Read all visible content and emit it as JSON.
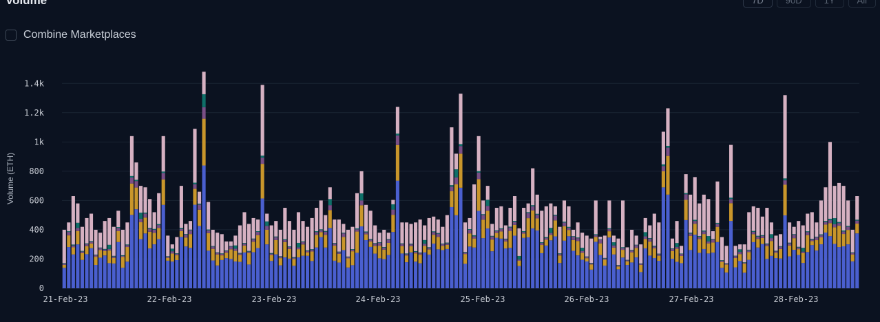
{
  "header": {
    "title": "Volume",
    "ranges": [
      "7D",
      "90D",
      "1Y",
      "All"
    ],
    "active_range": "7D"
  },
  "controls": {
    "combine_label": "Combine Marketplaces",
    "combine_checked": false
  },
  "colors": {
    "background": "#0b1220",
    "grid": "#1b2433",
    "axis_text": "#c8ccd4",
    "segments": [
      "#4a5fcf",
      "#c9962b",
      "#7a4f86",
      "#0f6f68",
      "#d6b1c2"
    ]
  },
  "chart_data": {
    "type": "bar",
    "stacked": true,
    "ylabel": "Volume (ETH)",
    "ylim": [
      0,
      1500
    ],
    "yticks": [
      0,
      200,
      400,
      600,
      800,
      "1k",
      "1.2k",
      "1.4k"
    ],
    "ytick_values": [
      0,
      200,
      400,
      600,
      800,
      1000,
      1200,
      1400
    ],
    "grid": true,
    "xticks": [
      "21-Feb-23",
      "22-Feb-23",
      "23-Feb-23",
      "24-Feb-23",
      "25-Feb-23",
      "26-Feb-23",
      "27-Feb-23",
      "28-Feb-23"
    ],
    "bar_totals": [
      400,
      450,
      630,
      580,
      420,
      480,
      510,
      400,
      380,
      460,
      480,
      420,
      530,
      400,
      450,
      1040,
      860,
      700,
      690,
      610,
      520,
      650,
      1040,
      360,
      300,
      350,
      700,
      440,
      460,
      1090,
      660,
      1480,
      590,
      400,
      380,
      370,
      320,
      320,
      360,
      430,
      520,
      440,
      480,
      470,
      1390,
      510,
      430,
      460,
      400,
      550,
      460,
      400,
      520,
      460,
      420,
      480,
      550,
      600,
      500,
      690,
      470,
      470,
      440,
      400,
      420,
      650,
      800,
      570,
      530,
      430,
      380,
      400,
      380,
      600,
      1240,
      450,
      450,
      440,
      450,
      470,
      430,
      480,
      490,
      470,
      420,
      500,
      1100,
      920,
      1330,
      450,
      480,
      710,
      1040,
      600,
      700,
      440,
      550,
      560,
      430,
      550,
      630,
      410,
      550,
      580,
      820,
      640,
      530,
      560,
      580,
      560,
      420,
      600,
      560,
      400,
      450,
      380,
      360,
      340,
      600,
      350,
      360,
      600,
      360,
      340,
      600,
      280,
      400,
      360,
      300,
      480,
      430,
      510,
      450,
      1070,
      1230,
      340,
      460,
      290,
      780,
      640,
      760,
      580,
      640,
      610,
      390,
      730,
      350,
      290,
      980,
      290,
      300,
      300,
      520,
      560,
      550,
      490,
      550,
      450,
      360,
      370,
      1320,
      450,
      420,
      460,
      430,
      510,
      520,
      450,
      600,
      690,
      1000,
      700,
      720,
      700,
      600,
      400,
      630
    ],
    "segment_order": [
      "primary",
      "secondary",
      "tertiary",
      "quaternary",
      "other"
    ],
    "typical_split": [
      0.5,
      0.13,
      0.04,
      0.03,
      0.3
    ]
  }
}
